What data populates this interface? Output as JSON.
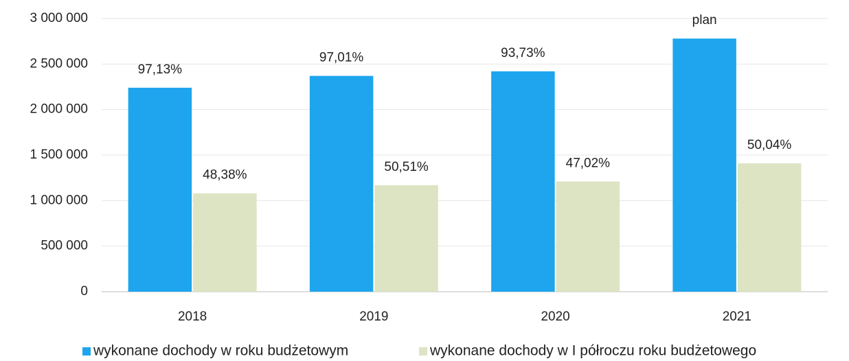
{
  "chart_data": {
    "type": "bar",
    "categories": [
      "2018",
      "2019",
      "2020",
      "2021"
    ],
    "series": [
      {
        "name": "wykonane dochody w roku budżetowym",
        "color": "#1ea5ee",
        "values": [
          2240000,
          2370000,
          2420000,
          2780000
        ],
        "annotations": [
          "97,13%",
          "97,01%",
          "93,73%",
          "plan"
        ]
      },
      {
        "name": "wykonane dochody w I półroczu roku budżetowego",
        "color": "#dde4c3",
        "values": [
          1080000,
          1170000,
          1210000,
          1410000
        ],
        "annotations": [
          "48,38%",
          "50,51%",
          "47,02%",
          "50,04%"
        ]
      }
    ],
    "ylim": [
      0,
      3000000
    ],
    "yticks": [
      0,
      {
        "value": 500000,
        "label": "500 000"
      },
      {
        "value": 1000000,
        "label": "1 000 000"
      },
      {
        "value": 1500000,
        "label": "1 500 000"
      },
      {
        "value": 2000000,
        "label": "2 000 000"
      },
      {
        "value": 2500000,
        "label": "2 500 000"
      },
      {
        "value": 3000000,
        "label": "3 000 000"
      }
    ],
    "grid": true,
    "legend": "bottom"
  }
}
